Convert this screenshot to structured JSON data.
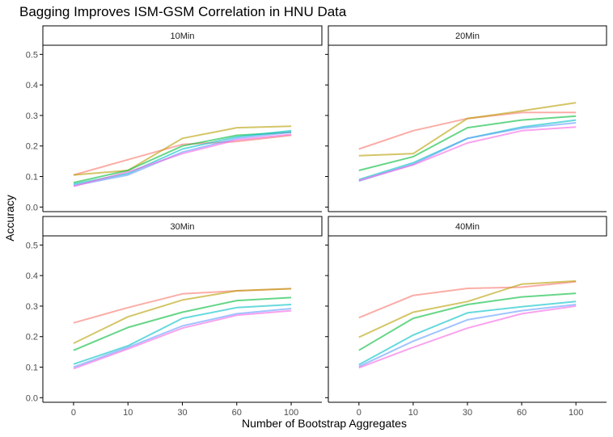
{
  "chart_data": {
    "type": "line",
    "title": "Bagging Improves ISM-GSM Correlation in HNU Data",
    "xlabel": "Number of Bootstrap Aggregates",
    "ylabel": "Accuracy",
    "x": [
      "0",
      "10",
      "30",
      "60",
      "100"
    ],
    "y_ticks": [
      "0.0",
      "0.1",
      "0.2",
      "0.3",
      "0.4",
      "0.5"
    ],
    "ylim": [
      -0.015,
      0.53
    ],
    "grid": false,
    "legend": "none",
    "series_colors": [
      "#F8766D",
      "#B79F00",
      "#00BA38",
      "#00BFC4",
      "#619CFF",
      "#F564E3"
    ],
    "panels": [
      {
        "label": "10Min",
        "series": [
          {
            "values": [
              0.105,
              0.155,
              0.205,
              0.215,
              0.235
            ]
          },
          {
            "values": [
              0.105,
              0.12,
              0.225,
              0.26,
              0.265
            ]
          },
          {
            "values": [
              0.08,
              0.12,
              0.2,
              0.235,
              0.245
            ]
          },
          {
            "values": [
              0.075,
              0.11,
              0.19,
              0.23,
              0.25
            ]
          },
          {
            "values": [
              0.07,
              0.105,
              0.18,
              0.225,
              0.245
            ]
          },
          {
            "values": [
              0.068,
              0.115,
              0.175,
              0.22,
              0.238
            ]
          }
        ]
      },
      {
        "label": "20Min",
        "series": [
          {
            "values": [
              0.19,
              0.25,
              0.29,
              0.31,
              0.31
            ]
          },
          {
            "values": [
              0.168,
              0.175,
              0.29,
              0.315,
              0.342
            ]
          },
          {
            "values": [
              0.12,
              0.165,
              0.26,
              0.285,
              0.298
            ]
          },
          {
            "values": [
              0.09,
              0.145,
              0.225,
              0.262,
              0.285
            ]
          },
          {
            "values": [
              0.085,
              0.14,
              0.225,
              0.258,
              0.276
            ]
          },
          {
            "values": [
              0.087,
              0.138,
              0.21,
              0.25,
              0.262
            ]
          }
        ]
      },
      {
        "label": "30Min",
        "series": [
          {
            "values": [
              0.245,
              0.295,
              0.34,
              0.35,
              0.357
            ]
          },
          {
            "values": [
              0.178,
              0.265,
              0.32,
              0.35,
              0.357
            ]
          },
          {
            "values": [
              0.155,
              0.23,
              0.28,
              0.318,
              0.328
            ]
          },
          {
            "values": [
              0.11,
              0.17,
              0.26,
              0.295,
              0.305
            ]
          },
          {
            "values": [
              0.1,
              0.165,
              0.235,
              0.275,
              0.292
            ]
          },
          {
            "values": [
              0.095,
              0.16,
              0.228,
              0.27,
              0.285
            ]
          }
        ]
      },
      {
        "label": "40Min",
        "series": [
          {
            "values": [
              0.262,
              0.335,
              0.358,
              0.362,
              0.38
            ]
          },
          {
            "values": [
              0.198,
              0.28,
              0.315,
              0.372,
              0.382
            ]
          },
          {
            "values": [
              0.155,
              0.26,
              0.305,
              0.33,
              0.342
            ]
          },
          {
            "values": [
              0.108,
              0.205,
              0.278,
              0.298,
              0.315
            ]
          },
          {
            "values": [
              0.102,
              0.185,
              0.255,
              0.285,
              0.305
            ]
          },
          {
            "values": [
              0.098,
              0.165,
              0.228,
              0.275,
              0.3
            ]
          }
        ]
      }
    ]
  }
}
